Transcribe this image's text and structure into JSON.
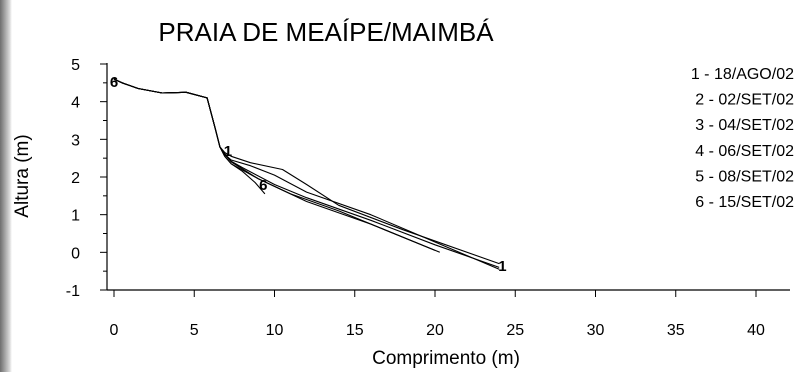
{
  "chart_data": {
    "type": "line",
    "title": "PRAIA DE MEAÍPE/MAIMBÁ",
    "xlabel": "Comprimento (m)",
    "ylabel": "Altura (m)",
    "xlim": [
      0,
      40
    ],
    "ylim": [
      -1,
      5
    ],
    "xticks": [
      0,
      5,
      10,
      15,
      20,
      25,
      30,
      35,
      40
    ],
    "yticks": [
      -1,
      0,
      1,
      2,
      3,
      4,
      5
    ],
    "grid": false,
    "legend_position": "top-right",
    "legend": [
      "1 - 18/AGO/02",
      "2 - 02/SET/02",
      "3 - 04/SET/02",
      "4 - 06/SET/02",
      "5 - 08/SET/02",
      "6 - 15/SET/02"
    ],
    "series": [
      {
        "name": "1",
        "x": [
          0,
          0.5,
          1.5,
          3,
          4.5,
          5.8,
          6.3,
          6.6,
          6.9,
          7.3,
          8,
          10,
          12,
          16,
          20,
          24
        ],
        "y": [
          4.6,
          4.5,
          4.35,
          4.23,
          4.25,
          4.1,
          3.3,
          2.8,
          2.62,
          2.42,
          2.25,
          1.8,
          1.45,
          0.85,
          0.2,
          -0.4
        ]
      },
      {
        "name": "2",
        "x": [
          0,
          0.5,
          1.5,
          3,
          4.5,
          5.8,
          6.3,
          6.6,
          6.9,
          7.3,
          8.5,
          10.5,
          12,
          14,
          18,
          24
        ],
        "y": [
          4.6,
          4.5,
          4.35,
          4.23,
          4.25,
          4.1,
          3.3,
          2.8,
          2.65,
          2.55,
          2.38,
          2.2,
          1.8,
          1.25,
          0.6,
          -0.3
        ]
      },
      {
        "name": "3",
        "x": [
          0,
          0.5,
          1.5,
          3,
          4.5,
          5.8,
          6.3,
          6.6,
          6.9,
          7.3,
          8.5,
          10,
          12,
          16,
          24
        ],
        "y": [
          4.6,
          4.5,
          4.35,
          4.23,
          4.25,
          4.1,
          3.3,
          2.8,
          2.6,
          2.45,
          2.3,
          2.05,
          1.6,
          1.0,
          -0.45
        ]
      },
      {
        "name": "4",
        "x": [
          0,
          0.5,
          1.5,
          3,
          4.5,
          5.8,
          6.3,
          6.6,
          6.9,
          7.3,
          9,
          11,
          14,
          20.3
        ],
        "y": [
          4.6,
          4.5,
          4.35,
          4.23,
          4.25,
          4.1,
          3.3,
          2.8,
          2.6,
          2.4,
          1.95,
          1.55,
          1.1,
          0.0
        ]
      },
      {
        "name": "5",
        "x": [
          0,
          0.5,
          1.5,
          3,
          4.5,
          5.8,
          6.3,
          6.6,
          6.9,
          7.3,
          9,
          12,
          16,
          20
        ],
        "y": [
          4.6,
          4.5,
          4.35,
          4.23,
          4.25,
          4.1,
          3.3,
          2.8,
          2.55,
          2.35,
          1.95,
          1.35,
          0.75,
          0.05
        ]
      },
      {
        "name": "6",
        "x": [
          0,
          0.5,
          1.5,
          3,
          4.5,
          5.8,
          6.3,
          6.6,
          6.9,
          7.3,
          8,
          8.8,
          9.4
        ],
        "y": [
          4.6,
          4.5,
          4.35,
          4.23,
          4.25,
          4.1,
          3.3,
          2.8,
          2.55,
          2.35,
          2.15,
          1.85,
          1.55
        ]
      }
    ],
    "annotations": [
      {
        "text": "6",
        "x": 0,
        "y": 4.55
      },
      {
        "text": "1",
        "x": 7.1,
        "y": 2.72
      },
      {
        "text": "6",
        "x": 9.3,
        "y": 1.82
      },
      {
        "text": "1",
        "x": 24.2,
        "y": -0.33
      }
    ]
  }
}
